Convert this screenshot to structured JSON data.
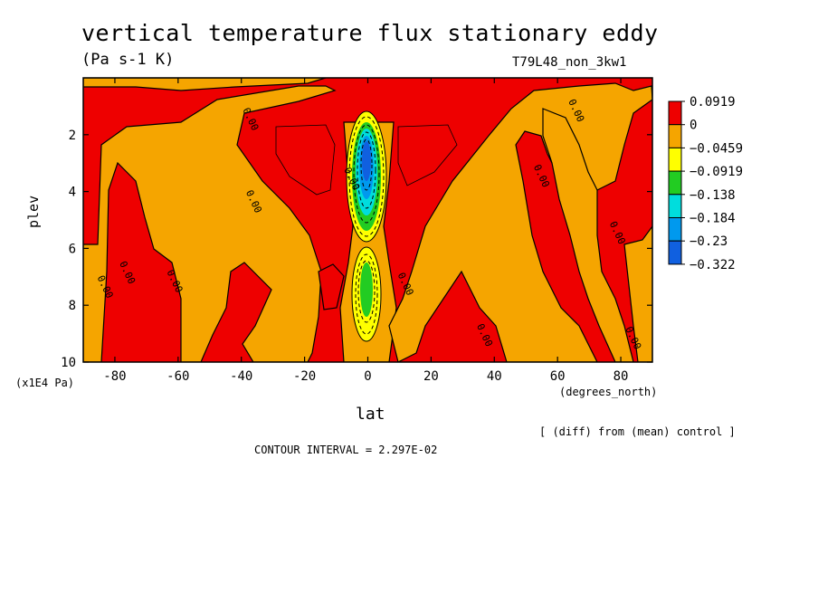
{
  "chart_data": {
    "type": "contour",
    "title": "vertical temperature flux stationary eddy",
    "units": "(Pa s-1 K)",
    "run_label": "T79L48_non_3kw1",
    "xlabel": "lat",
    "xunits": "(degrees_north)",
    "ylabel": "plev",
    "yunits": "(x1E4 Pa)",
    "xlim": [
      -90,
      90
    ],
    "ylim": [
      10,
      0
    ],
    "x_ticks": [
      -80,
      -60,
      -40,
      -20,
      0,
      20,
      40,
      60,
      80
    ],
    "y_ticks": [
      2,
      4,
      6,
      8,
      10
    ],
    "colorbar": {
      "levels": [
        "0.0919",
        "0",
        "−0.0459",
        "−0.0919",
        "−0.138",
        "−0.184",
        "−0.23",
        "−0.322"
      ],
      "colors": [
        "#ee0000",
        "#f5a500",
        "#ffff00",
        "#22cc22",
        "#00dddd",
        "#0099ee",
        "#1060e0"
      ]
    },
    "contour_labels": [
      {
        "text": "0.00",
        "lat": -38,
        "plev": 1.5
      },
      {
        "text": "0.00",
        "lat": -37,
        "plev": 4.4
      },
      {
        "text": "0.00",
        "lat": -62,
        "plev": 7.2
      },
      {
        "text": "0.00",
        "lat": -77,
        "plev": 6.9
      },
      {
        "text": "0.00",
        "lat": -84,
        "plev": 7.4
      },
      {
        "text": "0.00",
        "lat": -6,
        "plev": 3.6
      },
      {
        "text": "0.00",
        "lat": 11,
        "plev": 7.3
      },
      {
        "text": "0.00",
        "lat": 36,
        "plev": 9.1
      },
      {
        "text": "0.00",
        "lat": 54,
        "plev": 3.5
      },
      {
        "text": "0.00",
        "lat": 65,
        "plev": 1.2
      },
      {
        "text": "0.00",
        "lat": 78,
        "plev": 5.5
      },
      {
        "text": "0.00",
        "lat": 83,
        "plev": 9.2
      }
    ],
    "field_regions": [
      {
        "value_class": "0.0919",
        "description": "positive flux over most of domain"
      },
      {
        "value_class": "0",
        "description": "weak negative flux bands"
      },
      {
        "value_class": "-0.322",
        "description": "strong negative core near equator, plev 2.5-4"
      }
    ],
    "note": "[ (diff) from (mean) control ]",
    "contour_interval": "CONTOUR INTERVAL = 2.297E-02"
  }
}
